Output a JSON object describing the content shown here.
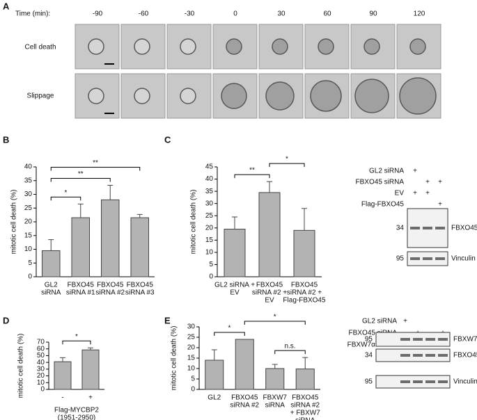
{
  "panel_labels": [
    "A",
    "B",
    "C",
    "D",
    "E"
  ],
  "panel_a": {
    "time_label": "Time (min):",
    "times": [
      "-90",
      "-60",
      "-30",
      "0",
      "30",
      "60",
      "90",
      "120"
    ],
    "rows": [
      "Cell death",
      "Slippage"
    ]
  },
  "chart_data": [
    {
      "type": "bar",
      "ylabel": "mitotic cell death (%)",
      "color": "#b3b3b3",
      "categories": [
        [
          "GL2",
          "siRNA"
        ],
        [
          "FBXO45",
          "siRNA #1"
        ],
        [
          "FBXO45",
          "siRNA #2"
        ],
        [
          "FBXO45",
          "siRNA #3"
        ]
      ],
      "values": [
        9.5,
        21.5,
        28,
        21.5
      ],
      "errors": [
        4,
        5,
        5.3,
        1.2
      ],
      "ylim": [
        0,
        40
      ],
      "yticks": [
        0,
        5,
        10,
        15,
        20,
        25,
        30,
        35,
        40
      ],
      "annotations": [
        {
          "from": 0,
          "to": 1,
          "label": "*"
        },
        {
          "from": 0,
          "to": 2,
          "label": "**"
        },
        {
          "from": 0,
          "to": 3,
          "label": "**"
        }
      ]
    },
    {
      "type": "bar",
      "ylabel": "mitotic cell death (%)",
      "color": "#b3b3b3",
      "categories": [
        [
          "GL2 siRNA +",
          "EV"
        ],
        [
          "FBXO45",
          "siRNA #2 +",
          "EV"
        ],
        [
          "FBXO45",
          "siRNA #2 +",
          "Flag-FBXO45"
        ]
      ],
      "values": [
        19.5,
        34.5,
        19
      ],
      "errors": [
        5,
        4.5,
        9
      ],
      "ylim": [
        0,
        45
      ],
      "yticks": [
        0,
        5,
        10,
        15,
        20,
        25,
        30,
        35,
        40,
        45
      ],
      "annotations": [
        {
          "from": 0,
          "to": 1,
          "label": "**"
        },
        {
          "from": 1,
          "to": 2,
          "label": "*"
        }
      ]
    },
    {
      "type": "bar",
      "ylabel": "mitotic cell death (%)",
      "color": "#b3b3b3",
      "categories": [
        [
          "-"
        ],
        [
          "+"
        ]
      ],
      "xlabel": [
        "Flag-MYCBP2",
        "(1951-2950)"
      ],
      "values": [
        41,
        58.5
      ],
      "errors": [
        6,
        3
      ],
      "ylim": [
        0,
        70
      ],
      "yticks": [
        0,
        10,
        20,
        30,
        40,
        50,
        60,
        70
      ],
      "annotations": [
        {
          "from": 0,
          "to": 1,
          "label": "*"
        }
      ]
    },
    {
      "type": "bar",
      "ylabel": "mitotic cell death (%)",
      "color": "#b3b3b3",
      "categories": [
        [
          "GL2"
        ],
        [
          "FBXO45",
          "siRNA #2"
        ],
        [
          "FBXW7",
          "siRNA"
        ],
        [
          "FBXO45",
          "siRNA #2",
          "+ FBXW7",
          "siRNA"
        ]
      ],
      "values": [
        14,
        24,
        10,
        9.8
      ],
      "errors": [
        5,
        0,
        2,
        5.5
      ],
      "ylim": [
        0,
        30
      ],
      "yticks": [
        0,
        5,
        10,
        15,
        20,
        25,
        30
      ],
      "annotations": [
        {
          "from": 0,
          "to": 1,
          "label": "*"
        },
        {
          "from": 2,
          "to": 3,
          "label": "n.s."
        },
        {
          "from": 1,
          "to": 3,
          "label": "*"
        }
      ]
    }
  ],
  "blot_c": {
    "rows": [
      {
        "label": "GL2 siRNA",
        "signs": [
          "+",
          null,
          null
        ]
      },
      {
        "label": "FBXO45 siRNA",
        "signs": [
          null,
          "+",
          "+"
        ]
      },
      {
        "label": "EV",
        "signs": [
          "+",
          "+",
          null
        ]
      },
      {
        "label": "Flag-FBXO45",
        "signs": [
          null,
          null,
          "+"
        ]
      }
    ],
    "bands": [
      {
        "marker": "34",
        "label": "FBXO45"
      },
      {
        "marker": "95",
        "label": "Vinculin"
      }
    ]
  },
  "blot_e": {
    "rows": [
      {
        "label": "GL2 siRNA",
        "signs": [
          "+",
          null,
          null,
          null
        ]
      },
      {
        "label": "FBXO45 siRNA",
        "signs": [
          null,
          "+",
          null,
          "+"
        ]
      },
      {
        "label": "FBXW7α siRNA",
        "signs": [
          null,
          null,
          "+",
          "+"
        ]
      }
    ],
    "bands": [
      {
        "marker": "95",
        "label": "FBXW7α"
      },
      {
        "marker": "34",
        "label": "FBXO45"
      },
      {
        "marker": "95",
        "label": "Vinculin"
      }
    ]
  }
}
